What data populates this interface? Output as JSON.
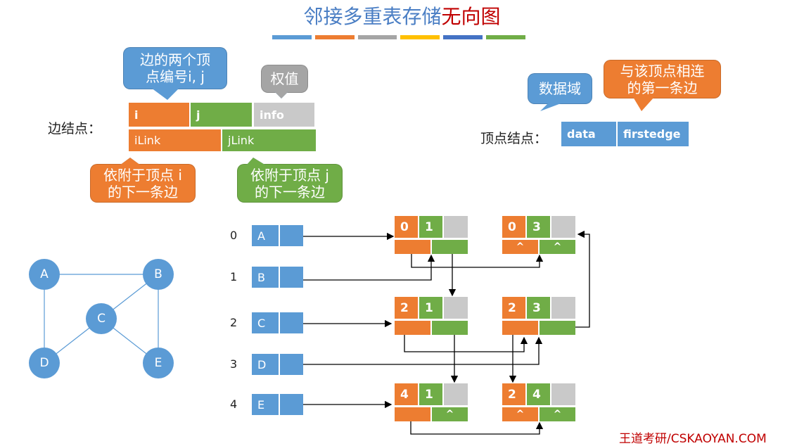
{
  "title": {
    "part1": "邻接多重表存储",
    "part2": "无向图",
    "color1": "#4A7EC4",
    "color2": "#C00000"
  },
  "title_bar_colors": [
    "#5B9BD5",
    "#ED7D31",
    "#A5A5A5",
    "#FFC000",
    "#4472C4",
    "#70AD47"
  ],
  "colors": {
    "orange": "#ED7D31",
    "green": "#70AD47",
    "grey": "#C9C9C9",
    "blue": "#5B9BD5"
  },
  "edge_node": {
    "label": "边结点：",
    "fields": {
      "i": "i",
      "j": "j",
      "info": "info",
      "ilink": "iLink",
      "jlink": "jLink"
    },
    "callouts": {
      "ij": "边的两个顶点编号i, j",
      "info": "权值",
      "ilink": "依附于顶点 i 的下一条边",
      "jlink": "依附于顶点 j 的下一条边"
    }
  },
  "vertex_node": {
    "label": "顶点结点：",
    "fields": {
      "data": "data",
      "firstedge": "firstedge"
    },
    "callouts": {
      "data": "数据域",
      "firstedge": "与该顶点相连的第一条边"
    }
  },
  "graph": {
    "vertices": [
      "A",
      "B",
      "C",
      "D",
      "E"
    ],
    "edges": [
      [
        "A",
        "B"
      ],
      [
        "A",
        "D"
      ],
      [
        "B",
        "C"
      ],
      [
        "B",
        "E"
      ],
      [
        "C",
        "D"
      ],
      [
        "C",
        "E"
      ]
    ]
  },
  "vertex_table": [
    {
      "index": "0",
      "data": "A"
    },
    {
      "index": "1",
      "data": "B"
    },
    {
      "index": "2",
      "data": "C"
    },
    {
      "index": "3",
      "data": "D"
    },
    {
      "index": "4",
      "data": "E"
    }
  ],
  "edge_nodes": [
    {
      "i": "0",
      "j": "1",
      "ilink": "",
      "jlink": ""
    },
    {
      "i": "0",
      "j": "3",
      "ilink": "^",
      "jlink": "^"
    },
    {
      "i": "2",
      "j": "1",
      "ilink": "",
      "jlink": ""
    },
    {
      "i": "2",
      "j": "3",
      "ilink": "",
      "jlink": ""
    },
    {
      "i": "4",
      "j": "1",
      "ilink": "",
      "jlink": "^"
    },
    {
      "i": "2",
      "j": "4",
      "ilink": "^",
      "jlink": "^"
    }
  ],
  "footer": "王道考研/CSKAOYAN.COM"
}
